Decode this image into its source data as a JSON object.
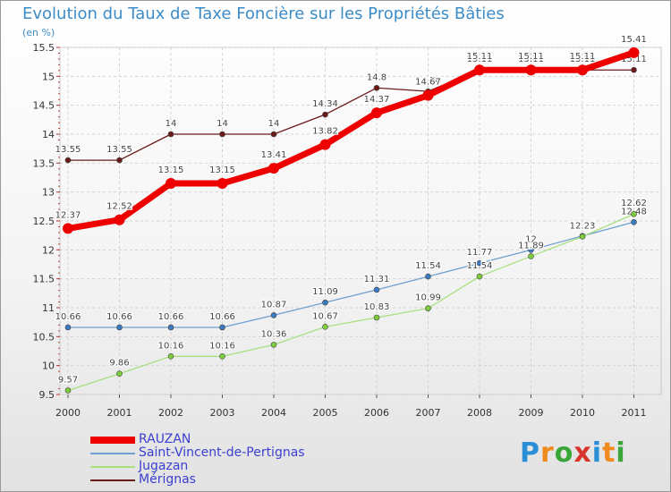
{
  "header": {
    "title": "Evolution du Taux de Taxe Foncière sur les Propriétés Bâties",
    "unit": "(en %)"
  },
  "brand": {
    "text": "Proxiti",
    "colors": [
      "#2b8fd8",
      "#f08a1c",
      "#3aa63a",
      "#d8342c",
      "#2b8fd8",
      "#f08a1c",
      "#3aa63a"
    ]
  },
  "legend": [
    {
      "label": "RAUZAN",
      "color": "#ee0000",
      "weight": "thick"
    },
    {
      "label": "Saint-Vincent-de-Pertignas",
      "color": "#6fa0d0",
      "weight": "thin"
    },
    {
      "label": "Jugazan",
      "color": "#a8e080",
      "weight": "thin"
    },
    {
      "label": "Mérignas",
      "color": "#6b1a1a",
      "weight": "thin"
    }
  ],
  "chart_data": {
    "type": "line",
    "title": "Evolution du Taux de Taxe Foncière sur les Propriétés Bâties",
    "ylabel": "(en %)",
    "x": [
      "2000",
      "2001",
      "2002",
      "2003",
      "2004",
      "2005",
      "2006",
      "2007",
      "2008",
      "2009",
      "2010",
      "2011"
    ],
    "ylim": [
      9.5,
      15.5
    ],
    "yticks": [
      "9.5",
      "10",
      "10.5",
      "11",
      "11.5",
      "12",
      "12.5",
      "13",
      "13.5",
      "14",
      "14.5",
      "15",
      "15.5"
    ],
    "grid": true,
    "series": [
      {
        "name": "Mérignas",
        "color": "#6b1a1a",
        "marker": "#6b1a1a",
        "width": 1.3,
        "r": 3,
        "values": [
          13.55,
          13.55,
          14,
          14,
          14,
          14.34,
          14.8,
          14.74,
          15.11,
          15.11,
          15.11,
          15.11
        ],
        "labels": [
          "13.55",
          "13.55",
          "14",
          "14",
          "14",
          "14.34",
          "14.8",
          "14.74",
          "15.11",
          "15.11",
          "15.11",
          "15.11"
        ]
      },
      {
        "name": "Saint-Vincent-de-Pertignas",
        "color": "#6fa0d0",
        "marker": "#3c7ac0",
        "width": 1.3,
        "r": 3,
        "values": [
          10.66,
          10.66,
          10.66,
          10.66,
          10.87,
          11.09,
          11.31,
          11.54,
          11.77,
          12,
          12.24,
          12.48
        ],
        "labels": [
          "10.66",
          "10.66",
          "10.66",
          "10.66",
          "10.87",
          "11.09",
          "11.31",
          "11.54",
          "11.77",
          "12",
          "12.24",
          "12.48"
        ]
      },
      {
        "name": "Jugazan",
        "color": "#a8e080",
        "marker": "#7ccc3c",
        "width": 1.3,
        "r": 3,
        "values": [
          9.57,
          9.86,
          10.16,
          10.16,
          10.36,
          10.67,
          10.83,
          10.99,
          11.54,
          11.89,
          12.23,
          12.62
        ],
        "labels": [
          "9.57",
          "9.86",
          "10.16",
          "10.16",
          "10.36",
          "10.67",
          "10.83",
          "10.99",
          "11.54",
          "11.89",
          "12.23",
          "12.62"
        ]
      },
      {
        "name": "RAUZAN",
        "color": "#ee0000",
        "marker": "#ee0000",
        "width": 7,
        "r": 6,
        "values": [
          12.37,
          12.52,
          13.15,
          13.15,
          13.41,
          13.82,
          14.37,
          14.67,
          15.11,
          15.11,
          15.11,
          15.41
        ],
        "labels": [
          "12.37",
          "12.52",
          "13.15",
          "13.15",
          "13.41",
          "13.82",
          "14.37",
          "14.67",
          "15.11",
          "15.11",
          "15.11",
          "15.41"
        ]
      }
    ]
  }
}
